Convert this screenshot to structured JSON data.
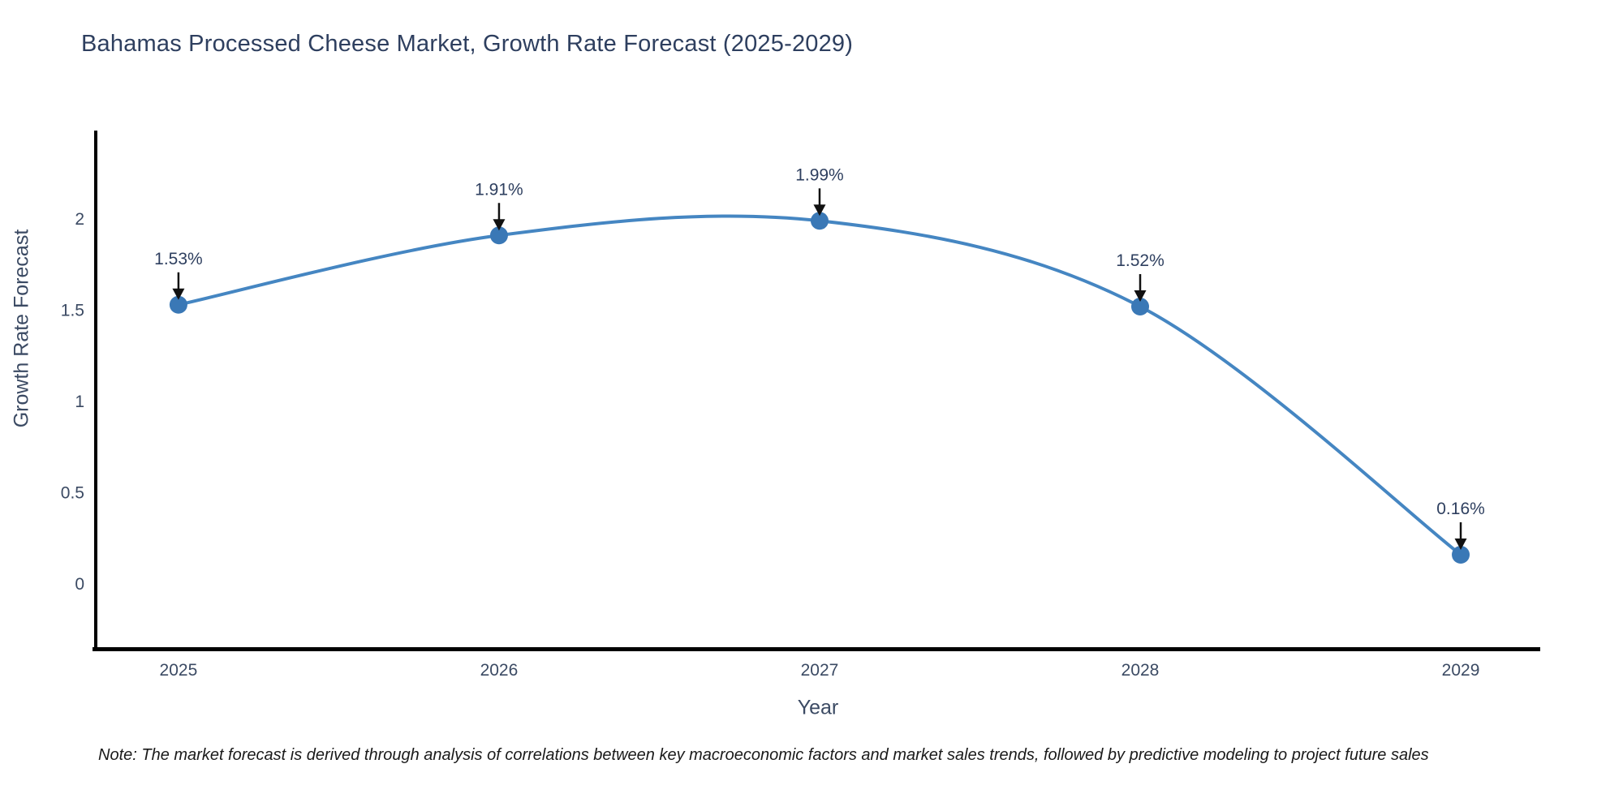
{
  "note": "Note: The market forecast is derived through analysis of correlations between key macroeconomic factors and market sales trends, followed by predictive modeling to project future sales",
  "chart_data": {
    "type": "line",
    "title": "Bahamas Processed Cheese Market, Growth Rate Forecast (2025-2029)",
    "xlabel": "Year",
    "ylabel": "Growth Rate Forecast",
    "x": [
      2025,
      2026,
      2027,
      2028,
      2029
    ],
    "values": [
      1.53,
      1.91,
      1.99,
      1.52,
      0.16
    ],
    "point_labels": [
      "1.53%",
      "1.91%",
      "1.99%",
      "1.52%",
      "0.16%"
    ],
    "xticks": [
      2025,
      2026,
      2027,
      2028,
      2029
    ],
    "yticks": [
      0,
      0.5,
      1,
      1.5,
      2
    ],
    "xlim": [
      2024.742,
      2029.248
    ],
    "ylim": [
      -0.36,
      2.4845
    ],
    "line_shape": "spline",
    "grid": false,
    "legend": "none",
    "marker_size": 11,
    "line_width": 4,
    "colors": {
      "line": "#4586c2",
      "marker": "#3a78b6",
      "axis": "#000000",
      "arrow": "#111111",
      "tick_text": "#3b4a63",
      "annotation_text": "#2e3f5f",
      "title_text": "#2e3f5f",
      "background": "#ffffff"
    }
  }
}
